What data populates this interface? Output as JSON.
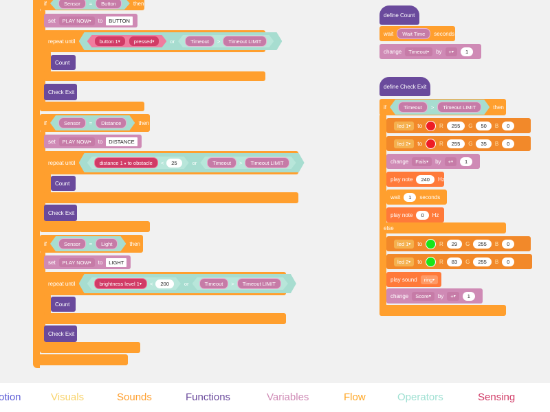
{
  "blocks": {
    "if": "if",
    "then": "then",
    "set": "set",
    "to": "to",
    "repeat_until": "repeat until",
    "or": "or",
    "count": "Count",
    "check_exit": "Check Exit",
    "sensor": "Sensor",
    "eq": "=",
    "lt": "<",
    "timeout": "Timeout",
    "timeout_limit": "Timeout LIMIT",
    "play_now": "PLAY NOW",
    "button": "Button",
    "distance": "Distance",
    "light": "Light",
    "BUTTON": "BUTTON",
    "DISTANCE": "DISTANCE",
    "LIGHT": "LIGHT",
    "button1": "button 1",
    "pressed": "pressed",
    "distance1": "distance 1",
    "to_obstacle": "to obstacle",
    "num25": "25",
    "brightness": "brightness level 1",
    "num200": "200"
  },
  "right": {
    "define_count": "define Count",
    "wait": "wait",
    "wait_time": "Wait Time",
    "seconds": "seconds",
    "change": "change",
    "by": "by",
    "plus": "+",
    "one": "1",
    "define_check_exit": "define Check Exit",
    "led1": "led 1",
    "led2": "led 2",
    "R": "R",
    "G": "G",
    "B": "B",
    "r255": "255",
    "g50": "50",
    "b0": "0",
    "g35": "35",
    "fails": "Fails",
    "play_note": "play note",
    "hz": "Hz",
    "note240": "240",
    "note0": "0",
    "else": "else",
    "r29": "29",
    "g255": "255",
    "r83": "83",
    "play_sound": "play sound",
    "ring": "ring",
    "score": "Score"
  },
  "categories": [
    {
      "label": "otion",
      "color": "#5b5bd6"
    },
    {
      "label": "Visuals",
      "color": "#f8d36b"
    },
    {
      "label": "Sounds",
      "color": "#ff9f2e"
    },
    {
      "label": "Functions",
      "color": "#6a4a9c"
    },
    {
      "label": "Variables",
      "color": "#cf8ab5"
    },
    {
      "label": "Flow",
      "color": "#ffa726"
    },
    {
      "label": "Operators",
      "color": "#9fe0d2"
    },
    {
      "label": "Sensing",
      "color": "#d13b66"
    }
  ]
}
